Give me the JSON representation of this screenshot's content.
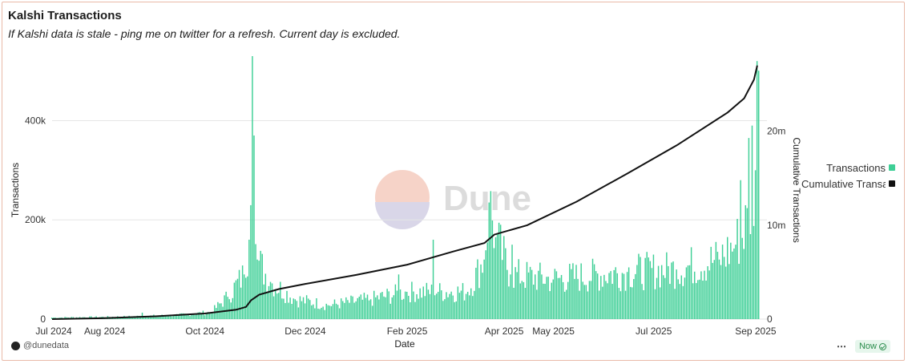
{
  "header": {
    "title": "Kalshi Transactions",
    "subtitle": "If Kalshi data is stale - ping me on twitter for a refresh. Current day is excluded."
  },
  "watermark": {
    "text": "Dune"
  },
  "footer": {
    "author": "@dunedata",
    "menu_label": "⋯",
    "refresh_label": "Now"
  },
  "colors": {
    "bars": "#3ecf96",
    "line": "#111111",
    "grid": "#e6e6e6"
  },
  "chart_data": {
    "type": "bar",
    "xlabel": "Date",
    "ylabel": "Transactions",
    "y2label": "Cumulative Transactions",
    "x_ticks": [
      "Jul 2024",
      "Aug 2024",
      "Oct 2024",
      "Dec 2024",
      "Feb 2025",
      "Apr 2025",
      "May 2025",
      "Jul 2025",
      "Sep 2025"
    ],
    "x_tick_dates": [
      "2024-07-01",
      "2024-08-01",
      "2024-10-01",
      "2024-12-01",
      "2025-02-01",
      "2025-04-01",
      "2025-05-01",
      "2025-07-01",
      "2025-09-01"
    ],
    "y_ticks": [
      "0",
      "200k",
      "400k"
    ],
    "y_tick_values": [
      0,
      200000,
      400000
    ],
    "y2_ticks": [
      "0",
      "10m",
      "20m"
    ],
    "y2_tick_values": [
      0,
      10000000,
      20000000
    ],
    "ylim": [
      0,
      530000
    ],
    "y2lim": [
      0,
      28000000
    ],
    "x_range": [
      "2024-06-30",
      "2025-09-03"
    ],
    "legend_position": "right",
    "series": [
      {
        "name": "Transactions",
        "kind": "bar",
        "keypoints": [
          [
            "2024-06-30",
            3000
          ],
          [
            "2024-08-15",
            5000
          ],
          [
            "2024-09-15",
            8000
          ],
          [
            "2024-10-05",
            14000
          ],
          [
            "2024-10-15",
            45000
          ],
          [
            "2024-10-25",
            90000
          ],
          [
            "2024-10-28",
            160000
          ],
          [
            "2024-10-30",
            530000
          ],
          [
            "2024-10-31",
            370000
          ],
          [
            "2024-11-02",
            120000
          ],
          [
            "2024-11-10",
            75000
          ],
          [
            "2024-11-25",
            40000
          ],
          [
            "2024-12-15",
            28000
          ],
          [
            "2025-01-10",
            40000
          ],
          [
            "2025-02-01",
            55000
          ],
          [
            "2025-02-20",
            55000
          ],
          [
            "2025-03-10",
            55000
          ],
          [
            "2025-03-20",
            120000
          ],
          [
            "2025-03-23",
            235000
          ],
          [
            "2025-03-27",
            165000
          ],
          [
            "2025-04-05",
            90000
          ],
          [
            "2025-05-01",
            80000
          ],
          [
            "2025-06-15",
            95000
          ],
          [
            "2025-07-15",
            100000
          ],
          [
            "2025-08-10",
            120000
          ],
          [
            "2025-08-20",
            150000
          ],
          [
            "2025-08-28",
            200000
          ],
          [
            "2025-09-01",
            300000
          ],
          [
            "2025-09-02",
            520000
          ]
        ],
        "spikes": [
          [
            "2024-08-24",
            13000
          ],
          [
            "2025-01-27",
            90000
          ],
          [
            "2025-02-17",
            160000
          ],
          [
            "2025-04-06",
            150000
          ],
          [
            "2025-08-23",
            280000
          ],
          [
            "2025-08-28",
            365000
          ],
          [
            "2025-08-30",
            390000
          ]
        ]
      },
      {
        "name": "Cumulative Transactions",
        "kind": "line",
        "axis": "right",
        "keypoints": [
          [
            "2024-06-30",
            0
          ],
          [
            "2024-08-01",
            100000
          ],
          [
            "2024-09-01",
            300000
          ],
          [
            "2024-10-01",
            600000
          ],
          [
            "2024-10-20",
            1000000
          ],
          [
            "2024-10-26",
            1300000
          ],
          [
            "2024-10-29",
            2000000
          ],
          [
            "2024-11-03",
            2600000
          ],
          [
            "2024-11-15",
            3200000
          ],
          [
            "2024-12-01",
            3750000
          ],
          [
            "2025-01-01",
            4700000
          ],
          [
            "2025-02-01",
            5800000
          ],
          [
            "2025-03-01",
            7200000
          ],
          [
            "2025-03-20",
            8100000
          ],
          [
            "2025-03-26",
            9000000
          ],
          [
            "2025-04-15",
            10000000
          ],
          [
            "2025-05-15",
            12500000
          ],
          [
            "2025-06-15",
            15500000
          ],
          [
            "2025-07-15",
            18500000
          ],
          [
            "2025-08-15",
            22000000
          ],
          [
            "2025-08-25",
            23500000
          ],
          [
            "2025-08-31",
            25500000
          ],
          [
            "2025-09-02",
            27000000
          ]
        ]
      }
    ]
  }
}
